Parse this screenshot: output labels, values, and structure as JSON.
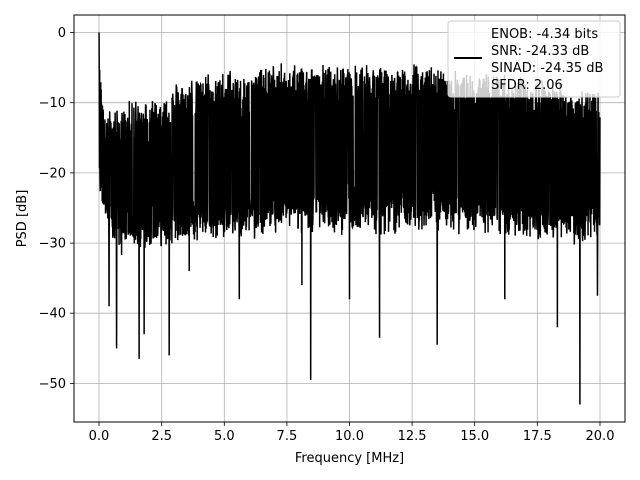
{
  "chart_data": {
    "type": "line",
    "xlabel": "Frequency [MHz]",
    "ylabel": "PSD [dB]",
    "xlim": [
      -1.0,
      21.0
    ],
    "ylim": [
      -55.5,
      2.5
    ],
    "xticks": [
      0.0,
      2.5,
      5.0,
      7.5,
      10.0,
      12.5,
      15.0,
      17.5,
      20.0
    ],
    "xtick_labels": [
      "0.0",
      "2.5",
      "5.0",
      "7.5",
      "10.0",
      "12.5",
      "15.0",
      "17.5",
      "20.0"
    ],
    "yticks": [
      0,
      -10,
      -20,
      -30,
      -40,
      -50
    ],
    "ytick_labels": [
      "0",
      "−10",
      "−20",
      "−30",
      "−40",
      "−50"
    ],
    "grid": true,
    "legend_position": "top-right",
    "legend": {
      "lines": [
        "ENOB: -4.34 bits",
        "SNR: -24.33 dB",
        "SINAD: -24.35 dB",
        "SFDR: 2.06"
      ]
    },
    "series": [
      {
        "color": "#000000",
        "style": "noise",
        "x_range": [
          0.0,
          20.0
        ],
        "peak": {
          "x": 0.0,
          "y": 0.0
        },
        "typical_upper_envelope": [
          [
            0.0,
            -5
          ],
          [
            0.3,
            -13
          ],
          [
            0.5,
            -12
          ],
          [
            0.8,
            -12
          ],
          [
            1.5,
            -11
          ],
          [
            2.5,
            -10
          ],
          [
            3.5,
            -8
          ],
          [
            5.0,
            -7
          ],
          [
            6.5,
            -6
          ],
          [
            8.0,
            -6
          ],
          [
            10.0,
            -6
          ],
          [
            12.5,
            -6
          ],
          [
            15.0,
            -7
          ],
          [
            17.5,
            -8
          ],
          [
            20.0,
            -10
          ]
        ],
        "typical_lower_envelope": [
          [
            0.0,
            -22
          ],
          [
            0.5,
            -30
          ],
          [
            1.0,
            -30
          ],
          [
            2.5,
            -29
          ],
          [
            5.0,
            -28
          ],
          [
            7.5,
            -27
          ],
          [
            10.0,
            -27
          ],
          [
            12.5,
            -27
          ],
          [
            15.0,
            -27
          ],
          [
            17.5,
            -28
          ],
          [
            20.0,
            -29
          ]
        ],
        "notable_dips": [
          {
            "x": 0.4,
            "y": -39
          },
          {
            "x": 0.7,
            "y": -45
          },
          {
            "x": 1.6,
            "y": -46.5
          },
          {
            "x": 1.8,
            "y": -43
          },
          {
            "x": 2.8,
            "y": -46
          },
          {
            "x": 3.6,
            "y": -34
          },
          {
            "x": 5.6,
            "y": -38
          },
          {
            "x": 8.1,
            "y": -36
          },
          {
            "x": 8.45,
            "y": -49.5
          },
          {
            "x": 10.0,
            "y": -38
          },
          {
            "x": 11.2,
            "y": -43.5
          },
          {
            "x": 13.5,
            "y": -44.5
          },
          {
            "x": 16.2,
            "y": -38
          },
          {
            "x": 18.3,
            "y": -42
          },
          {
            "x": 19.2,
            "y": -53
          },
          {
            "x": 19.9,
            "y": -37.5
          }
        ]
      }
    ]
  }
}
